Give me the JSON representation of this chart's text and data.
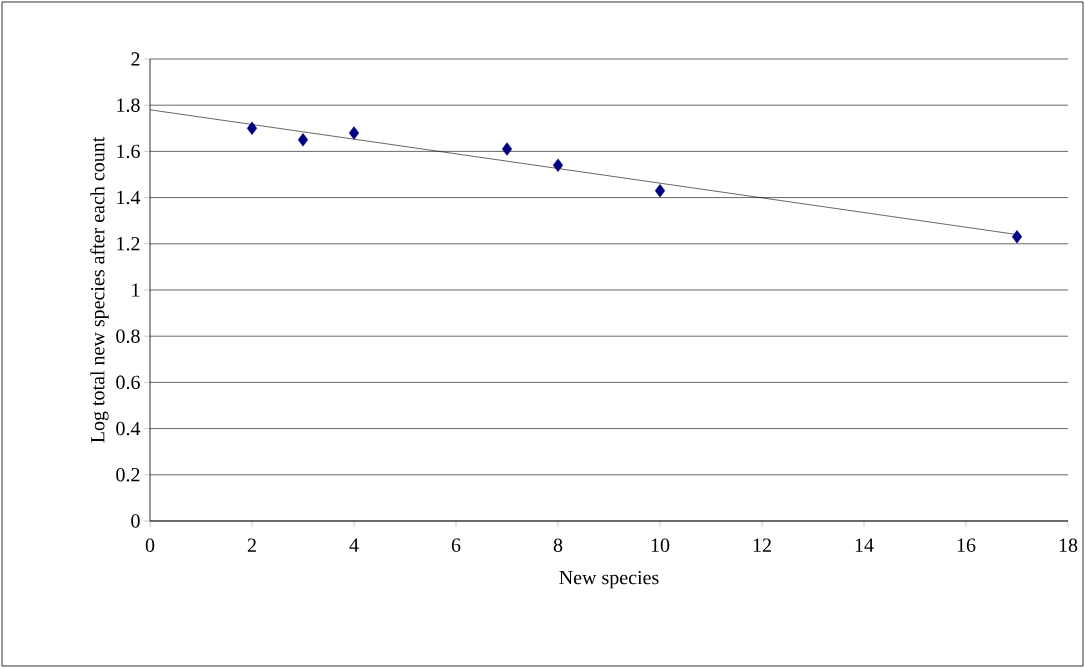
{
  "chart_data": {
    "type": "scatter",
    "xlabel": "New species",
    "ylabel": "Log total new species after each count",
    "series": [
      {
        "color": "#000080",
        "marker": "diamond",
        "x": [
          2,
          3,
          4,
          7,
          8,
          10,
          17
        ],
        "values": [
          1.7,
          1.65,
          1.68,
          1.61,
          1.54,
          1.43,
          1.23
        ]
      },
      {
        "type": "line",
        "color": "#000000",
        "marker": "none",
        "x": [
          0,
          17
        ],
        "values": [
          1.78,
          1.24
        ]
      }
    ],
    "xlim": [
      0,
      18
    ],
    "ylim": [
      0,
      2
    ],
    "xticks": [
      0,
      2,
      4,
      6,
      8,
      10,
      12,
      14,
      16,
      18
    ],
    "yticks": [
      0,
      0.2,
      0.4,
      0.6,
      0.8,
      1,
      1.2,
      1.4,
      1.6,
      1.8,
      2
    ],
    "grid": "y"
  }
}
